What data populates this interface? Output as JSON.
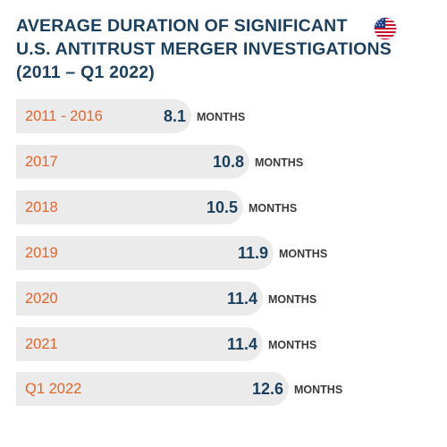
{
  "title_lines": [
    "AVERAGE DURATION OF SIGNIFICANT",
    "U.S. ANTITRUST MERGER INVESTIGATIONS",
    "(2011 – Q1 2022)"
  ],
  "colors": {
    "title": "#1b3f5e",
    "category": "#e8632a",
    "value": "#1b3f5e",
    "unit": "#3a3a3a",
    "bar": "#ebebeb"
  },
  "flag_icon": "us-flag-icon",
  "chart_data": {
    "type": "bar",
    "orientation": "horizontal",
    "title": "AVERAGE DURATION OF SIGNIFICANT U.S. ANTITRUST MERGER INVESTIGATIONS (2011 – Q1 2022)",
    "categories": [
      "2011 - 2016",
      "2017",
      "2018",
      "2019",
      "2020",
      "2021",
      "Q1 2022"
    ],
    "values": [
      8.1,
      10.8,
      10.5,
      11.9,
      11.4,
      11.4,
      12.6
    ],
    "value_labels": [
      "8.1",
      "10.8",
      "10.5",
      "11.9",
      "11.4",
      "11.4",
      "12.6"
    ],
    "unit_label": "MONTHS",
    "grid": false,
    "legend": "none"
  }
}
